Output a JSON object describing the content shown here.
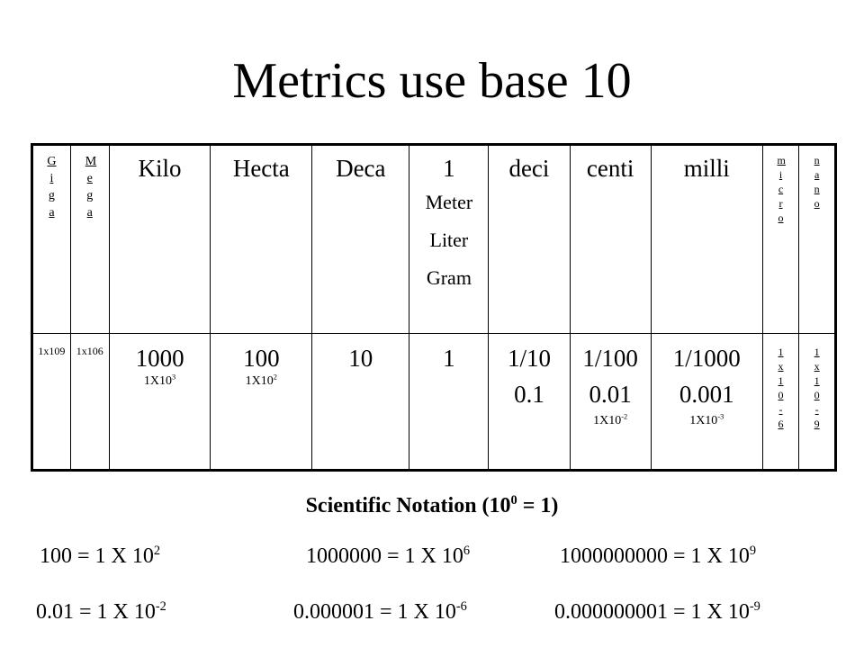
{
  "title": "Metrics use base 10",
  "table": {
    "prefixes": {
      "giga": "Giga",
      "mega": "Mega",
      "kilo": "Kilo",
      "hecta": "Hecta",
      "deca": "Deca",
      "base_value": "1",
      "base_units": [
        "Meter",
        "Liter",
        "Gram"
      ],
      "deci": "deci",
      "centi": "centi",
      "milli": "milli",
      "micro": "micro",
      "nano": "nano"
    },
    "values": {
      "giga": "1x109",
      "mega": "1x106",
      "kilo": "1000",
      "kilo_sci_base": "1X10",
      "kilo_sci_exp": "3",
      "hecta": "100",
      "hecta_sci_base": "1X10",
      "hecta_sci_exp": "2",
      "deca": "10",
      "base": "1",
      "deci_fraction": "1/10",
      "deci_decimal": "0.1",
      "centi_fraction": "1/100",
      "centi_decimal": "0.01",
      "centi_sci_base": "1X10",
      "centi_sci_exp": "-2",
      "milli_fraction": "1/1000",
      "milli_decimal": "0.001",
      "milli_sci_base": "1X10",
      "milli_sci_exp": "-3",
      "micro": "1x10-6",
      "nano": "1x10-9"
    }
  },
  "scientific": {
    "heading_text": "Scientific Notation (10",
    "heading_exp": "0",
    "heading_tail": " = 1)",
    "equations": [
      {
        "lhs": "100 = 1 X 10",
        "exp": "2"
      },
      {
        "lhs": "1000000 = 1 X 10",
        "exp": "6"
      },
      {
        "lhs": "1000000000 = 1 X 10",
        "exp": "9"
      },
      {
        "lhs": "0.01 = 1 X 10",
        "exp": "-2"
      },
      {
        "lhs": "0.000001 = 1 X 10",
        "exp": "-6"
      },
      {
        "lhs": "0.000000001 = 1 X 10",
        "exp": "-9"
      }
    ]
  }
}
